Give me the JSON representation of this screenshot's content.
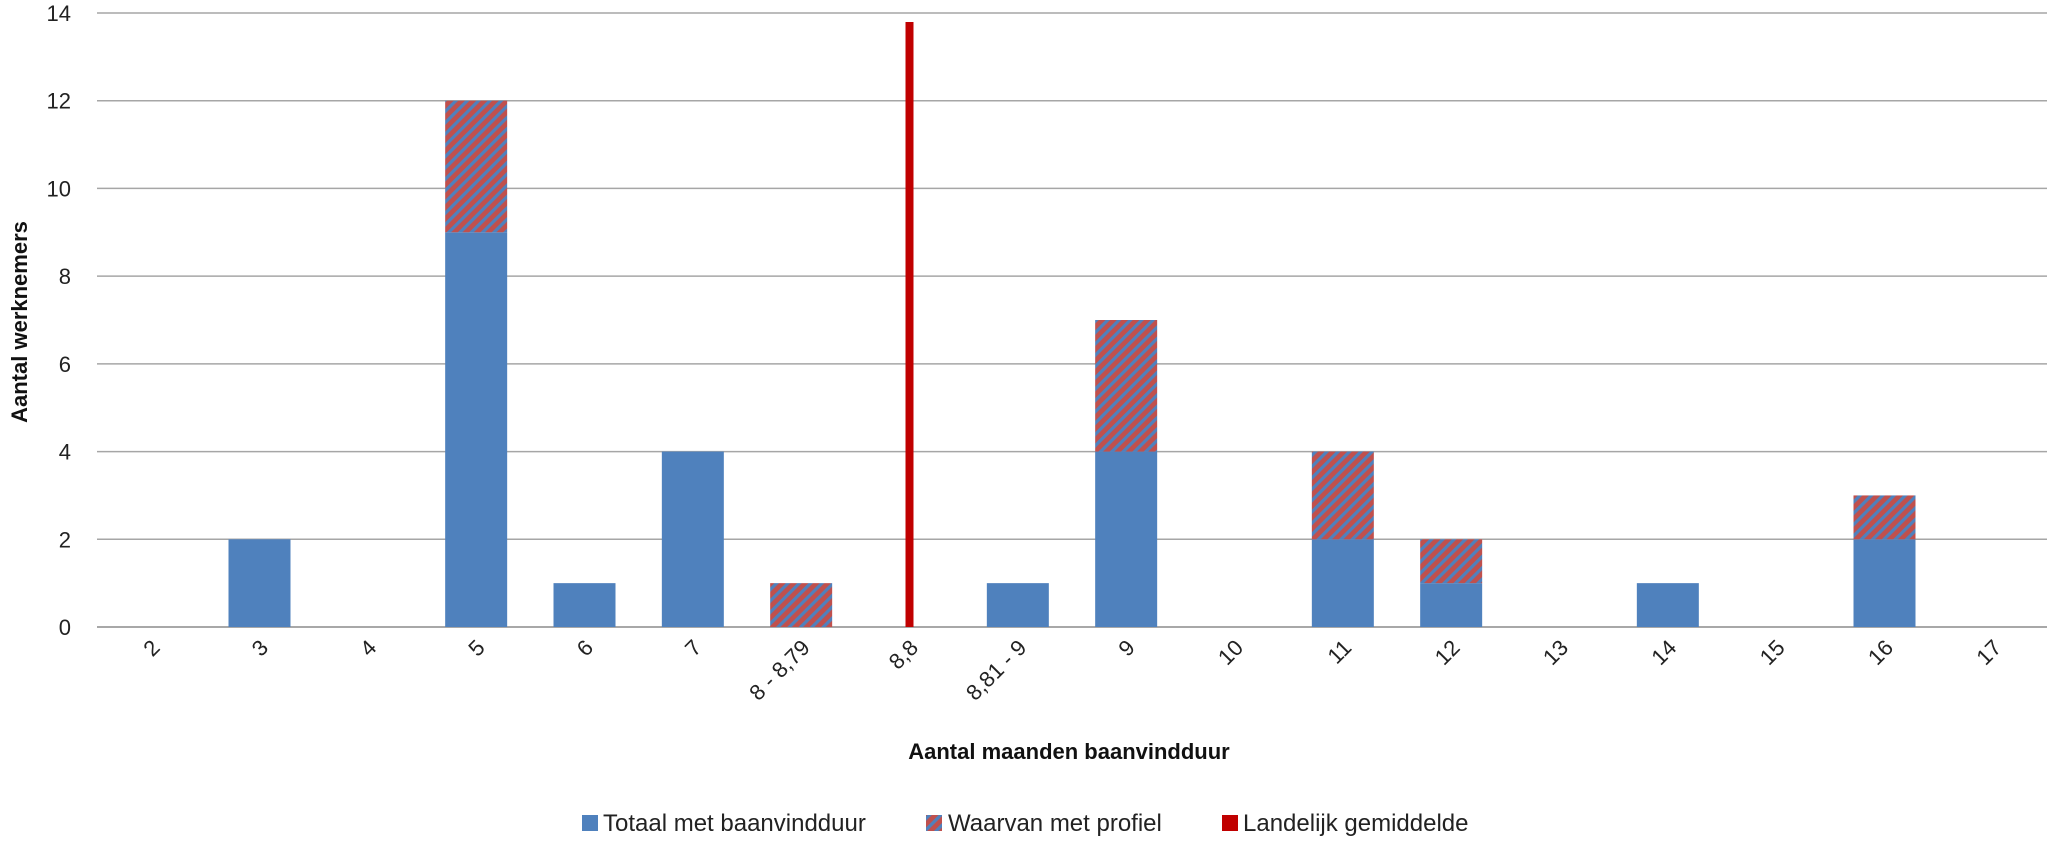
{
  "chart_data": {
    "type": "bar",
    "stacked": true,
    "title": "",
    "xlabel": "Aantal maanden baanvindduur",
    "ylabel": "Aantal werknemers",
    "ylim": [
      0,
      14
    ],
    "yticks": [
      0,
      2,
      4,
      6,
      8,
      10,
      12,
      14
    ],
    "grid": true,
    "legend_position": "bottom",
    "categories": [
      "2",
      "3",
      "4",
      "5",
      "6",
      "7",
      "8 - 8,79",
      "8,8",
      "8,81 - 9",
      "9",
      "10",
      "11",
      "12",
      "13",
      "14",
      "15",
      "16",
      "17"
    ],
    "series": [
      {
        "name": "Totaal met baanvindduur",
        "color": "#4F81BD",
        "pattern": "solid",
        "values": [
          0,
          2,
          0,
          9,
          1,
          4,
          0,
          0,
          1,
          4,
          0,
          2,
          1,
          0,
          1,
          0,
          2,
          0
        ]
      },
      {
        "name": "Waarvan met profiel",
        "color": "#C0504D",
        "pattern": "diagonal-hatch",
        "values": [
          0,
          0,
          0,
          3,
          0,
          0,
          1,
          0,
          0,
          3,
          0,
          2,
          1,
          0,
          0,
          0,
          1,
          0
        ]
      }
    ],
    "reference_line": {
      "name": "Landelijk gemiddelde",
      "category": "8,8",
      "color": "#C00000"
    }
  }
}
